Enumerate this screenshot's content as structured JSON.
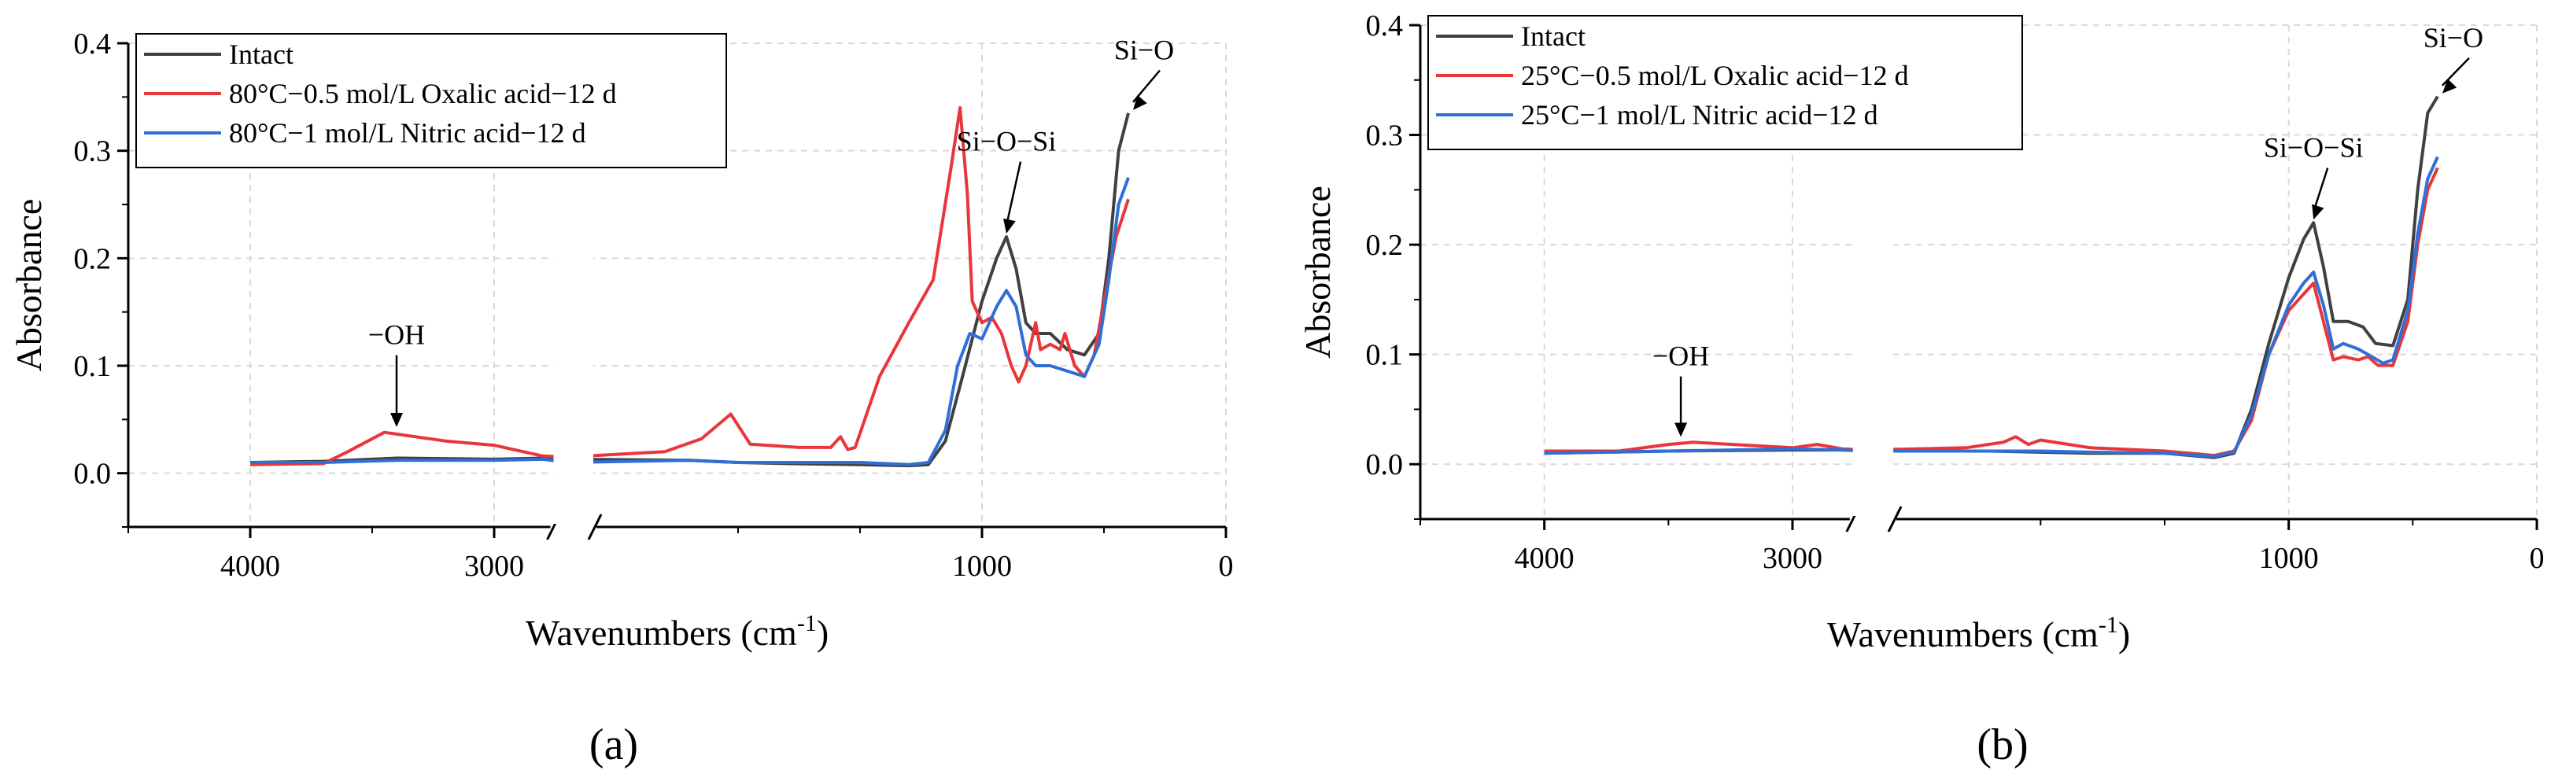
{
  "chart_data": [
    {
      "id": "a",
      "type": "line",
      "panel_label": "(a)",
      "xlabel": "Wavenumbers (cm",
      "xlabel_sup": "-1",
      "xlabel_close": ")",
      "ylabel": "Absorbance",
      "ylim": [
        -0.05,
        0.4
      ],
      "xlim": [
        4500,
        0
      ],
      "axis_break": [
        2750,
        2600
      ],
      "grid": true,
      "legend_position": "top-left",
      "yticks": [
        0.0,
        0.1,
        0.2,
        0.3,
        0.4
      ],
      "ytick_labels": [
        "0.0",
        "0.1",
        "0.2",
        "0.3",
        "0.4"
      ],
      "xticks": [
        4000,
        3000,
        1000,
        0
      ],
      "xtick_labels": [
        "4000",
        "3000",
        "1000",
        "0"
      ],
      "series": [
        {
          "name": "Intact",
          "color": "#404040",
          "points": [
            [
              4000,
              0.01
            ],
            [
              3700,
              0.011
            ],
            [
              3400,
              0.014
            ],
            [
              3000,
              0.013
            ],
            [
              2800,
              0.014
            ],
            [
              2700,
              0.013
            ],
            [
              2200,
              0.012
            ],
            [
              2000,
              0.01
            ],
            [
              1800,
              0.009
            ],
            [
              1500,
              0.008
            ],
            [
              1300,
              0.007
            ],
            [
              1220,
              0.008
            ],
            [
              1150,
              0.03
            ],
            [
              1080,
              0.09
            ],
            [
              1000,
              0.16
            ],
            [
              940,
              0.2
            ],
            [
              900,
              0.22
            ],
            [
              860,
              0.19
            ],
            [
              820,
              0.14
            ],
            [
              780,
              0.13
            ],
            [
              720,
              0.13
            ],
            [
              650,
              0.115
            ],
            [
              580,
              0.11
            ],
            [
              520,
              0.13
            ],
            [
              480,
              0.2
            ],
            [
              440,
              0.3
            ],
            [
              400,
              0.335
            ]
          ]
        },
        {
          "name": "80°C−0.5 mol/L Oxalic acid−12 d",
          "color": "#e8363a",
          "points": [
            [
              4000,
              0.008
            ],
            [
              3700,
              0.009
            ],
            [
              3600,
              0.02
            ],
            [
              3450,
              0.038
            ],
            [
              3200,
              0.03
            ],
            [
              3000,
              0.026
            ],
            [
              2800,
              0.016
            ],
            [
              2700,
              0.015
            ],
            [
              2300,
              0.02
            ],
            [
              2150,
              0.032
            ],
            [
              2030,
              0.055
            ],
            [
              1950,
              0.027
            ],
            [
              1750,
              0.024
            ],
            [
              1620,
              0.024
            ],
            [
              1580,
              0.034
            ],
            [
              1550,
              0.022
            ],
            [
              1520,
              0.024
            ],
            [
              1420,
              0.09
            ],
            [
              1300,
              0.14
            ],
            [
              1200,
              0.18
            ],
            [
              1130,
              0.28
            ],
            [
              1090,
              0.34
            ],
            [
              1060,
              0.26
            ],
            [
              1040,
              0.16
            ],
            [
              1000,
              0.14
            ],
            [
              960,
              0.145
            ],
            [
              920,
              0.13
            ],
            [
              880,
              0.1
            ],
            [
              850,
              0.085
            ],
            [
              820,
              0.1
            ],
            [
              780,
              0.14
            ],
            [
              760,
              0.115
            ],
            [
              720,
              0.12
            ],
            [
              680,
              0.115
            ],
            [
              660,
              0.13
            ],
            [
              620,
              0.1
            ],
            [
              580,
              0.09
            ],
            [
              540,
              0.11
            ],
            [
              500,
              0.16
            ],
            [
              450,
              0.22
            ],
            [
              400,
              0.255
            ]
          ]
        },
        {
          "name": "80°C−1 mol/L Nitric acid−12 d",
          "color": "#2f6fd6",
          "points": [
            [
              4000,
              0.01
            ],
            [
              3700,
              0.01
            ],
            [
              3400,
              0.012
            ],
            [
              3000,
              0.012
            ],
            [
              2800,
              0.013
            ],
            [
              2700,
              0.01
            ],
            [
              2200,
              0.012
            ],
            [
              2000,
              0.01
            ],
            [
              1800,
              0.01
            ],
            [
              1500,
              0.01
            ],
            [
              1300,
              0.008
            ],
            [
              1220,
              0.01
            ],
            [
              1150,
              0.04
            ],
            [
              1100,
              0.1
            ],
            [
              1050,
              0.13
            ],
            [
              1000,
              0.125
            ],
            [
              940,
              0.155
            ],
            [
              900,
              0.17
            ],
            [
              860,
              0.155
            ],
            [
              820,
              0.11
            ],
            [
              780,
              0.1
            ],
            [
              720,
              0.1
            ],
            [
              650,
              0.095
            ],
            [
              580,
              0.09
            ],
            [
              520,
              0.12
            ],
            [
              480,
              0.18
            ],
            [
              440,
              0.25
            ],
            [
              400,
              0.275
            ]
          ]
        }
      ],
      "annotations": [
        {
          "label": "−OH",
          "x": 3400,
          "y": 0.04,
          "text_y": 0.12
        },
        {
          "label": "Si−O−Si",
          "x": 900,
          "y": 0.22,
          "text_y": 0.3
        },
        {
          "label": "Si−O",
          "x": 400,
          "y": 0.335,
          "text_y": 0.385
        }
      ]
    },
    {
      "id": "b",
      "type": "line",
      "panel_label": "(b)",
      "xlabel": "Wavenumbers (cm",
      "xlabel_sup": "-1",
      "xlabel_close": ")",
      "ylabel": "Absorbance",
      "ylim": [
        -0.05,
        0.4
      ],
      "xlim": [
        4500,
        0
      ],
      "axis_break": [
        2750,
        2600
      ],
      "grid": true,
      "legend_position": "top-left",
      "yticks": [
        0.0,
        0.1,
        0.2,
        0.3,
        0.4
      ],
      "ytick_labels": [
        "0.0",
        "0.1",
        "0.2",
        "0.3",
        "0.4"
      ],
      "xticks": [
        4000,
        3000,
        1000,
        0
      ],
      "xtick_labels": [
        "4000",
        "3000",
        "1000",
        "0"
      ],
      "series": [
        {
          "name": "Intact",
          "color": "#404040",
          "points": [
            [
              4000,
              0.01
            ],
            [
              3500,
              0.012
            ],
            [
              3000,
              0.013
            ],
            [
              2800,
              0.013
            ],
            [
              2700,
              0.012
            ],
            [
              2200,
              0.012
            ],
            [
              2000,
              0.011
            ],
            [
              1800,
              0.01
            ],
            [
              1500,
              0.01
            ],
            [
              1300,
              0.006
            ],
            [
              1220,
              0.01
            ],
            [
              1150,
              0.05
            ],
            [
              1080,
              0.11
            ],
            [
              1000,
              0.17
            ],
            [
              940,
              0.205
            ],
            [
              900,
              0.22
            ],
            [
              860,
              0.18
            ],
            [
              820,
              0.13
            ],
            [
              760,
              0.13
            ],
            [
              700,
              0.125
            ],
            [
              650,
              0.11
            ],
            [
              580,
              0.108
            ],
            [
              520,
              0.15
            ],
            [
              480,
              0.25
            ],
            [
              440,
              0.32
            ],
            [
              400,
              0.335
            ]
          ]
        },
        {
          "name": "25°C−0.5 mol/L Oxalic acid−12 d",
          "color": "#e8363a",
          "points": [
            [
              4000,
              0.012
            ],
            [
              3700,
              0.012
            ],
            [
              3500,
              0.018
            ],
            [
              3400,
              0.02
            ],
            [
              3000,
              0.015
            ],
            [
              2900,
              0.018
            ],
            [
              2800,
              0.014
            ],
            [
              2700,
              0.013
            ],
            [
              2300,
              0.015
            ],
            [
              2150,
              0.02
            ],
            [
              2100,
              0.025
            ],
            [
              2050,
              0.018
            ],
            [
              2000,
              0.022
            ],
            [
              1800,
              0.015
            ],
            [
              1500,
              0.012
            ],
            [
              1300,
              0.008
            ],
            [
              1220,
              0.012
            ],
            [
              1150,
              0.04
            ],
            [
              1080,
              0.1
            ],
            [
              1000,
              0.14
            ],
            [
              940,
              0.155
            ],
            [
              900,
              0.165
            ],
            [
              860,
              0.13
            ],
            [
              820,
              0.095
            ],
            [
              780,
              0.098
            ],
            [
              720,
              0.095
            ],
            [
              680,
              0.098
            ],
            [
              640,
              0.09
            ],
            [
              580,
              0.09
            ],
            [
              520,
              0.13
            ],
            [
              480,
              0.2
            ],
            [
              440,
              0.25
            ],
            [
              400,
              0.27
            ]
          ]
        },
        {
          "name": "25°C−1 mol/L Nitric acid−12 d",
          "color": "#2f6fd6",
          "points": [
            [
              4000,
              0.01
            ],
            [
              3500,
              0.012
            ],
            [
              3000,
              0.014
            ],
            [
              2800,
              0.013
            ],
            [
              2700,
              0.012
            ],
            [
              2200,
              0.012
            ],
            [
              2000,
              0.012
            ],
            [
              1800,
              0.011
            ],
            [
              1500,
              0.01
            ],
            [
              1300,
              0.007
            ],
            [
              1220,
              0.011
            ],
            [
              1150,
              0.045
            ],
            [
              1080,
              0.1
            ],
            [
              1000,
              0.145
            ],
            [
              940,
              0.165
            ],
            [
              900,
              0.175
            ],
            [
              860,
              0.145
            ],
            [
              820,
              0.105
            ],
            [
              780,
              0.11
            ],
            [
              720,
              0.105
            ],
            [
              680,
              0.1
            ],
            [
              620,
              0.092
            ],
            [
              580,
              0.095
            ],
            [
              520,
              0.14
            ],
            [
              480,
              0.21
            ],
            [
              440,
              0.26
            ],
            [
              400,
              0.28
            ]
          ]
        }
      ],
      "annotations": [
        {
          "label": "−OH",
          "x": 3450,
          "y": 0.022,
          "text_y": 0.09
        },
        {
          "label": "Si−O−Si",
          "x": 900,
          "y": 0.22,
          "text_y": 0.28
        },
        {
          "label": "Si−O",
          "x": 400,
          "y": 0.335,
          "text_y": 0.38
        }
      ]
    }
  ]
}
